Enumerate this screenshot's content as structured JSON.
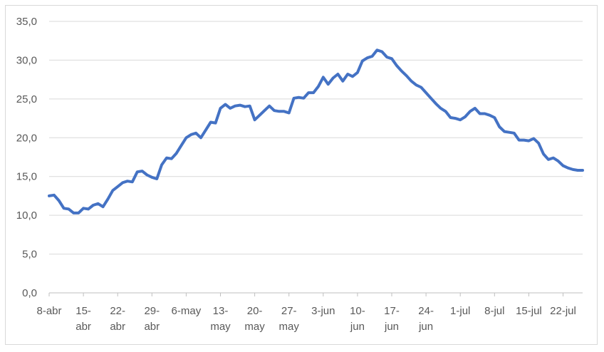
{
  "chart_data": {
    "type": "line",
    "title": "",
    "xlabel": "",
    "ylabel": "",
    "ylim": [
      0,
      35
    ],
    "yticks": [
      "0,0",
      "5,0",
      "10,0",
      "15,0",
      "20,0",
      "25,0",
      "30,0",
      "35,0"
    ],
    "xticks": [
      {
        "top": "8-abr",
        "bottom": ""
      },
      {
        "top": "15-",
        "bottom": "abr"
      },
      {
        "top": "22-",
        "bottom": "abr"
      },
      {
        "top": "29-",
        "bottom": "abr"
      },
      {
        "top": "6-may",
        "bottom": ""
      },
      {
        "top": "13-",
        "bottom": "may"
      },
      {
        "top": "20-",
        "bottom": "may"
      },
      {
        "top": "27-",
        "bottom": "may"
      },
      {
        "top": "3-jun",
        "bottom": ""
      },
      {
        "top": "10-",
        "bottom": "jun"
      },
      {
        "top": "17-",
        "bottom": "jun"
      },
      {
        "top": "24-",
        "bottom": "jun"
      },
      {
        "top": "1-jul",
        "bottom": ""
      },
      {
        "top": "8-jul",
        "bottom": ""
      },
      {
        "top": "15-jul",
        "bottom": ""
      },
      {
        "top": "22-jul",
        "bottom": ""
      }
    ],
    "grid": true,
    "series": [
      {
        "color": "#4472c4",
        "x": [
          "2020-04-08",
          "2020-04-09",
          "2020-04-10",
          "2020-04-11",
          "2020-04-12",
          "2020-04-13",
          "2020-04-14",
          "2020-04-15",
          "2020-04-16",
          "2020-04-17",
          "2020-04-18",
          "2020-04-19",
          "2020-04-20",
          "2020-04-21",
          "2020-04-22",
          "2020-04-23",
          "2020-04-24",
          "2020-04-25",
          "2020-04-26",
          "2020-04-27",
          "2020-04-28",
          "2020-04-29",
          "2020-04-30",
          "2020-05-01",
          "2020-05-02",
          "2020-05-03",
          "2020-05-04",
          "2020-05-05",
          "2020-05-06",
          "2020-05-07",
          "2020-05-08",
          "2020-05-09",
          "2020-05-10",
          "2020-05-11",
          "2020-05-12",
          "2020-05-13",
          "2020-05-14",
          "2020-05-15",
          "2020-05-16",
          "2020-05-17",
          "2020-05-18",
          "2020-05-19",
          "2020-05-20",
          "2020-05-21",
          "2020-05-22",
          "2020-05-23",
          "2020-05-24",
          "2020-05-25",
          "2020-05-26",
          "2020-05-27",
          "2020-05-28",
          "2020-05-29",
          "2020-05-30",
          "2020-05-31",
          "2020-06-01",
          "2020-06-02",
          "2020-06-03",
          "2020-06-04",
          "2020-06-05",
          "2020-06-06",
          "2020-06-07",
          "2020-06-08",
          "2020-06-09",
          "2020-06-10",
          "2020-06-11",
          "2020-06-12",
          "2020-06-13",
          "2020-06-14",
          "2020-06-15",
          "2020-06-16",
          "2020-06-17",
          "2020-06-18",
          "2020-06-19",
          "2020-06-20",
          "2020-06-21",
          "2020-06-22",
          "2020-06-23",
          "2020-06-24",
          "2020-06-25",
          "2020-06-26",
          "2020-06-27",
          "2020-06-28",
          "2020-06-29",
          "2020-06-30",
          "2020-07-01",
          "2020-07-02",
          "2020-07-03",
          "2020-07-04",
          "2020-07-05",
          "2020-07-06",
          "2020-07-07",
          "2020-07-08",
          "2020-07-09",
          "2020-07-10",
          "2020-07-11",
          "2020-07-12",
          "2020-07-13",
          "2020-07-14",
          "2020-07-15",
          "2020-07-16",
          "2020-07-17",
          "2020-07-18",
          "2020-07-19",
          "2020-07-20",
          "2020-07-21",
          "2020-07-22",
          "2020-07-23",
          "2020-07-24",
          "2020-07-25",
          "2020-07-26"
        ],
        "values": [
          12.5,
          12.6,
          11.9,
          10.9,
          10.8,
          10.3,
          10.3,
          10.9,
          10.8,
          11.3,
          11.5,
          11.1,
          12.1,
          13.2,
          13.7,
          14.2,
          14.4,
          14.3,
          15.6,
          15.7,
          15.2,
          14.9,
          14.7,
          16.5,
          17.4,
          17.3,
          18.0,
          19.0,
          20.0,
          20.4,
          20.6,
          20.0,
          21.0,
          22.0,
          21.9,
          23.8,
          24.3,
          23.8,
          24.1,
          24.2,
          24.0,
          24.1,
          22.3,
          22.9,
          23.5,
          24.1,
          23.5,
          23.4,
          23.4,
          23.2,
          25.1,
          25.2,
          25.1,
          25.8,
          25.8,
          26.6,
          27.8,
          26.9,
          27.7,
          28.2,
          27.3,
          28.2,
          27.9,
          28.4,
          29.9,
          30.3,
          30.5,
          31.3,
          31.1,
          30.4,
          30.2,
          29.3,
          28.6,
          28.0,
          27.3,
          26.8,
          26.5,
          25.8,
          25.1,
          24.4,
          23.8,
          23.4,
          22.6,
          22.5,
          22.3,
          22.7,
          23.4,
          23.8,
          23.1,
          23.1,
          22.9,
          22.6,
          21.4,
          20.8,
          20.7,
          20.6,
          19.7,
          19.7,
          19.6,
          19.9,
          19.3,
          17.9,
          17.2,
          17.4,
          17.0,
          16.4,
          16.1,
          15.9,
          15.8,
          15.8
        ]
      }
    ]
  }
}
